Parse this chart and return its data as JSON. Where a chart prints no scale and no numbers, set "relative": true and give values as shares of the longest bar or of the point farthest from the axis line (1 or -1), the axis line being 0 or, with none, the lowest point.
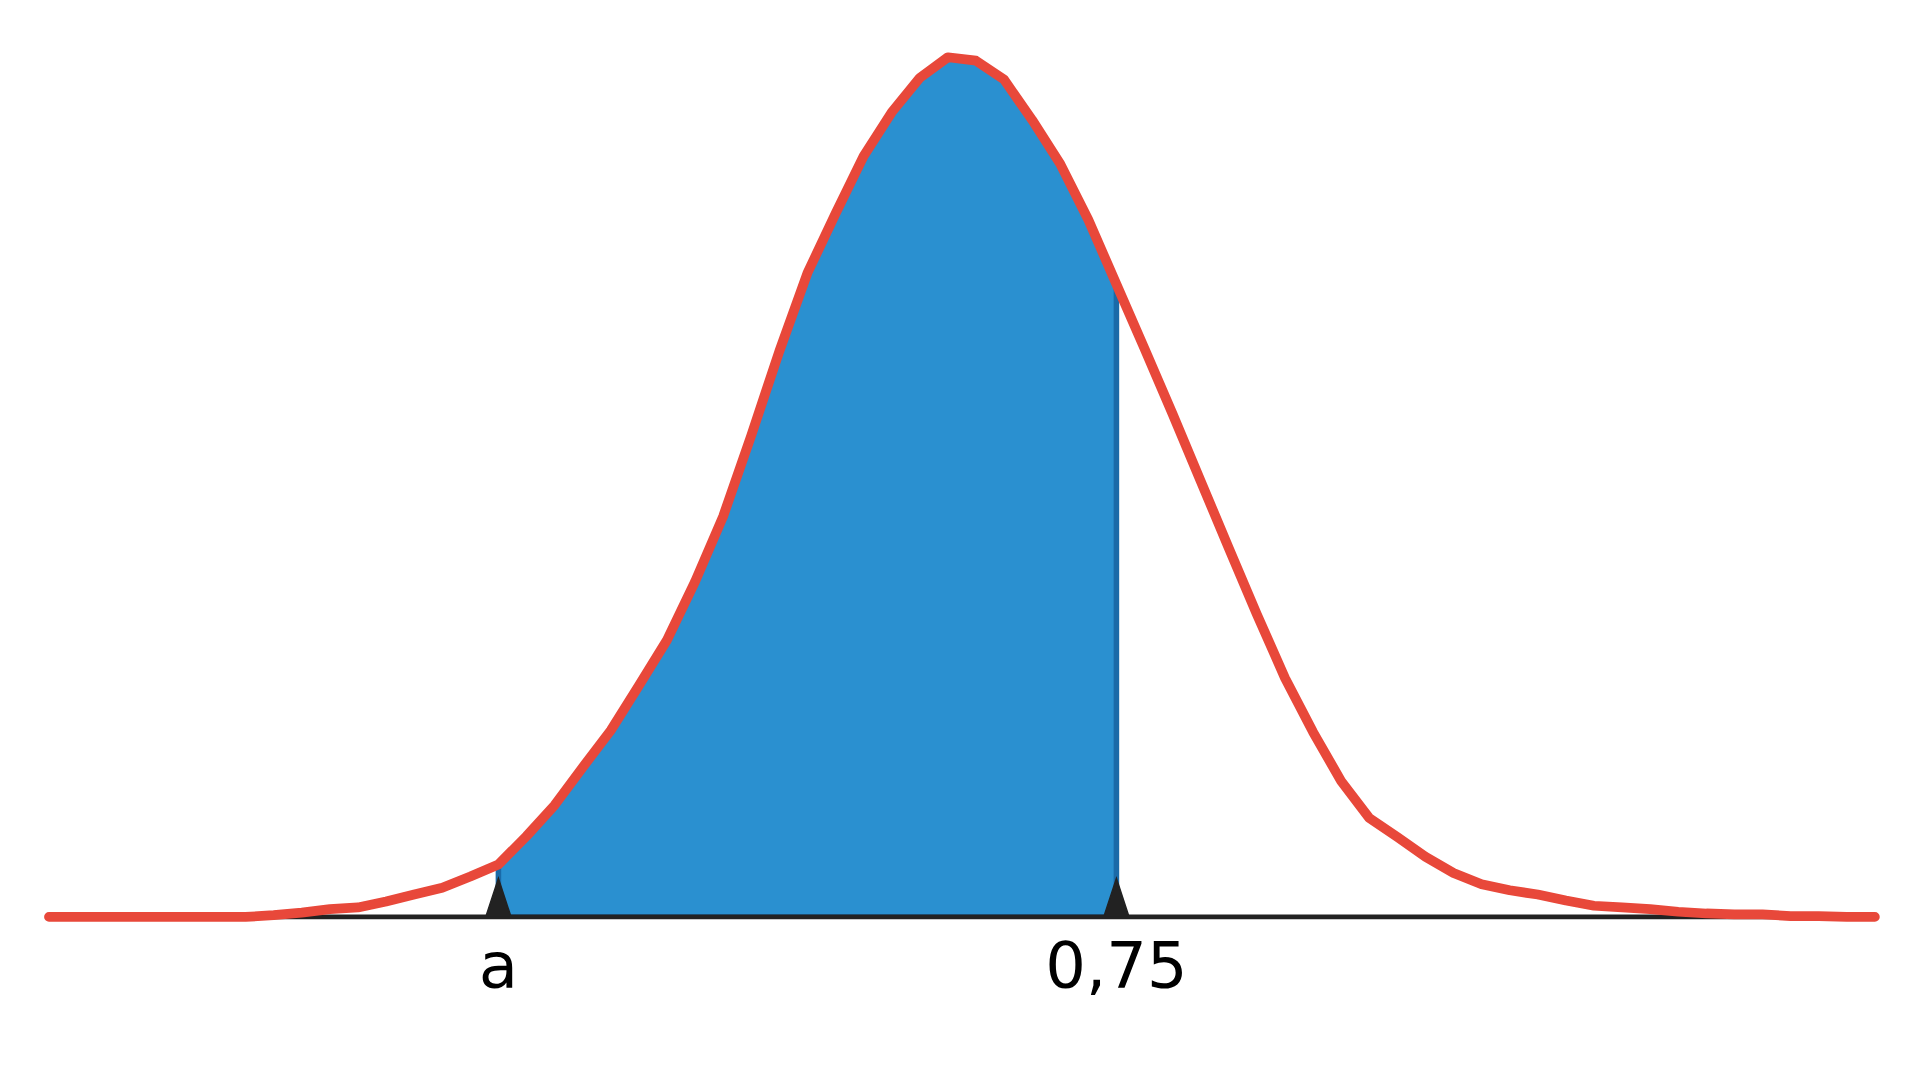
{
  "chart_data": {
    "type": "line",
    "relative": true,
    "grid": false,
    "legend": false,
    "marker": "none",
    "line_style": "solid",
    "categories": [
      null,
      null,
      null,
      null,
      null,
      null,
      null,
      null,
      null,
      null,
      null,
      null,
      null,
      null,
      null,
      null,
      "a",
      null,
      null,
      null,
      null,
      null,
      null,
      null,
      null,
      null,
      null,
      null,
      null,
      null,
      null,
      null,
      null,
      null,
      null,
      null,
      null,
      null,
      "0,75",
      null,
      null,
      null,
      null,
      null,
      null,
      null,
      null,
      null,
      null,
      null,
      null,
      null,
      null,
      null,
      null,
      null,
      null,
      null,
      null,
      null,
      null,
      null,
      null,
      null,
      null,
      null
    ],
    "series": [
      {
        "type": "area",
        "color": "#2a90d0",
        "values": [
          null,
          null,
          null,
          null,
          null,
          null,
          null,
          null,
          null,
          null,
          null,
          null,
          null,
          null,
          null,
          null,
          0.061,
          0.094,
          0.13,
          0.174,
          0.217,
          0.269,
          0.322,
          0.39,
          0.466,
          0.56,
          0.658,
          0.749,
          0.818,
          0.885,
          0.936,
          0.976,
          1,
          0.996,
          0.974,
          0.927,
          0.876,
          0.811,
          0.736,
          null,
          null,
          null,
          null,
          null,
          null,
          null,
          null,
          null,
          null,
          null,
          null,
          null,
          null,
          null,
          null,
          null,
          null,
          null,
          null,
          null,
          null,
          null,
          null,
          null,
          null,
          null
        ]
      },
      {
        "color": "#e8483a",
        "values": [
          0,
          0,
          0,
          0,
          0,
          0,
          0,
          0,
          0.002,
          0.005,
          0.009,
          0.011,
          0.018,
          0.026,
          0.034,
          0.047,
          0.061,
          0.094,
          0.13,
          0.174,
          0.217,
          0.269,
          0.322,
          0.39,
          0.466,
          0.56,
          0.658,
          0.749,
          0.818,
          0.885,
          0.936,
          0.976,
          1,
          0.996,
          0.974,
          0.927,
          0.876,
          0.811,
          0.736,
          0.661,
          0.585,
          0.507,
          0.429,
          0.352,
          0.278,
          0.215,
          0.158,
          0.115,
          0.093,
          0.07,
          0.051,
          0.038,
          0.031,
          0.026,
          0.019,
          0.013,
          0.011,
          0.009,
          0.006,
          0.004,
          0.003,
          0.003,
          0.001,
          0.001,
          0,
          0
        ]
      }
    ]
  }
}
